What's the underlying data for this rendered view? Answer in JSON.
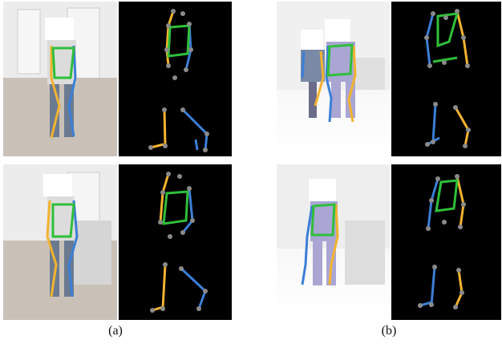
{
  "captions": {
    "a": "(a)",
    "b": "(b)"
  },
  "colors": {
    "left_limb": "#f2b330",
    "right_limb": "#3b7fd6",
    "torso": "#2fbf3a",
    "keypoint": "#8a8a8a",
    "background_skeleton": "#000000",
    "face_mask": "#ffffff"
  }
}
